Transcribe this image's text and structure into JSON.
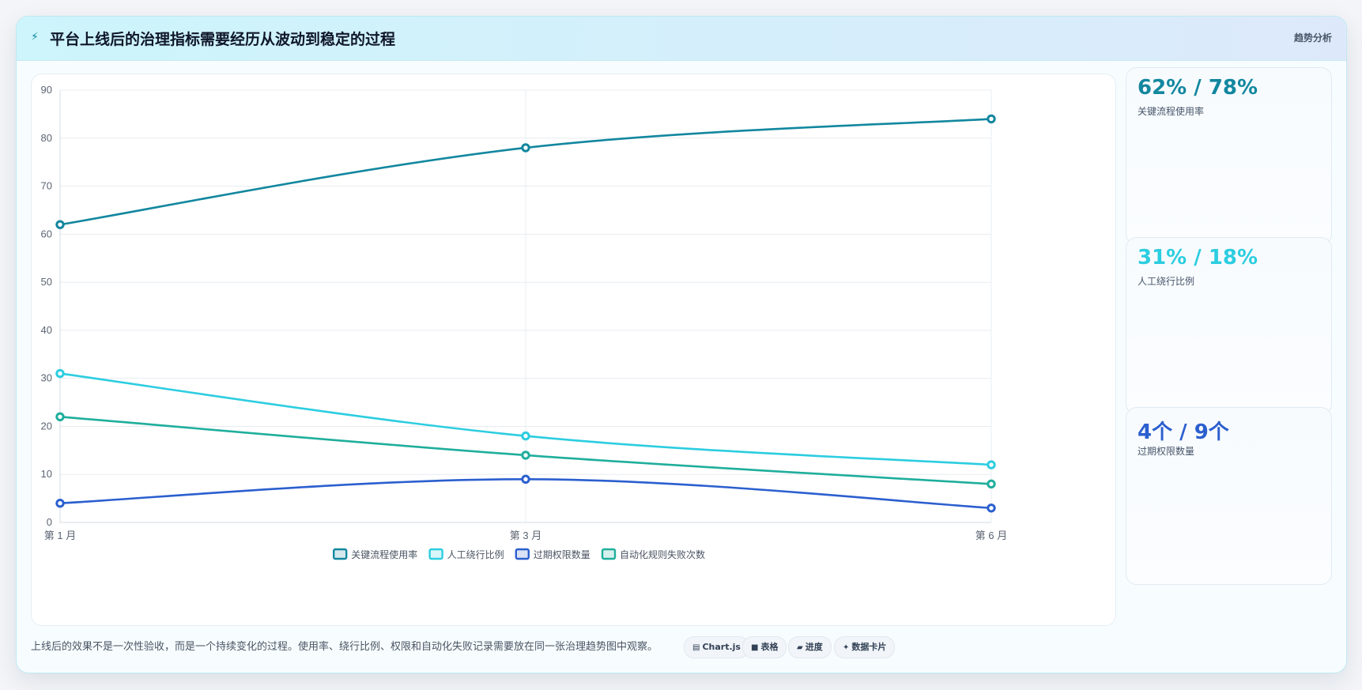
{
  "header": {
    "title": "平台上线后的治理指标需要经历从波动到稳定的过程",
    "badge": "趋势分析",
    "icon": "bolt-icon"
  },
  "chart_data": {
    "type": "line",
    "x": [
      "第 1 月",
      "第 3 月",
      "第 6 月"
    ],
    "ylim": [
      0,
      90
    ],
    "yticks": [
      0,
      10,
      20,
      30,
      40,
      50,
      60,
      70,
      80,
      90
    ],
    "grid": true,
    "legend_position": "bottom",
    "series": [
      {
        "name": "关键流程使用率",
        "values": [
          62,
          78,
          84
        ],
        "color": "#12879f"
      },
      {
        "name": "人工绕行比例",
        "values": [
          31,
          18,
          12
        ],
        "color": "#2ccde0"
      },
      {
        "name": "过期权限数量",
        "values": [
          4,
          9,
          3
        ],
        "color": "#2b5fcf"
      },
      {
        "name": "自动化规则失败次数",
        "values": [
          22,
          14,
          8
        ],
        "color": "#1fae9c"
      }
    ]
  },
  "kpis": [
    {
      "value": "62% / 78%",
      "label": "关键流程使用率",
      "color": "#12879f"
    },
    {
      "value": "31% / 18%",
      "label": "人工绕行比例",
      "color": "#2ccde0"
    },
    {
      "value": "4个 / 9个",
      "label": "过期权限数量",
      "color": "#2b5fcf"
    }
  ],
  "footer": {
    "text": "上线后的效果不是一次性验收，而是一个持续变化的过程。使用率、绕行比例、权限和自动化失败记录需要放在同一张治理趋势图中观察。",
    "pills": [
      {
        "icon": "chart-icon",
        "glyph": "▤",
        "label": "Chart.js"
      },
      {
        "icon": "table-icon",
        "glyph": "■",
        "label": "表格"
      },
      {
        "icon": "progress-icon",
        "glyph": "▰",
        "label": "进度"
      },
      {
        "icon": "card-icon",
        "glyph": "✦",
        "label": "数据卡片"
      }
    ]
  }
}
